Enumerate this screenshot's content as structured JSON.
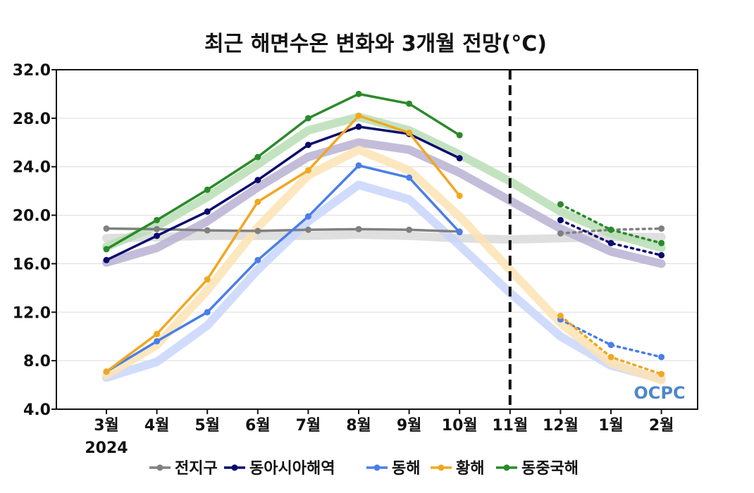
{
  "chart_data": {
    "type": "line",
    "title": "최근 해면수온 변화와 3개월 전망(°C)",
    "categories": [
      "3월",
      "4월",
      "5월",
      "6월",
      "7월",
      "8월",
      "9월",
      "10월",
      "11월",
      "12월",
      "1월",
      "2월"
    ],
    "year_label": "2024",
    "ylim": [
      4.0,
      32.0
    ],
    "yticks": [
      4.0,
      8.0,
      12.0,
      16.0,
      20.0,
      24.0,
      28.0,
      32.0
    ],
    "grid": true,
    "forecast_divider_between": [
      "10월",
      "12월"
    ],
    "legend_position": "bottom",
    "series": [
      {
        "name": "전지구",
        "color": "#808080",
        "observed": [
          18.9,
          18.85,
          18.75,
          18.7,
          18.8,
          18.85,
          18.8,
          18.65
        ],
        "forecast": [
          null,
          null,
          null,
          null,
          null,
          null,
          null,
          null,
          null,
          18.5,
          18.8,
          18.9
        ],
        "normal": [
          18.1,
          18.2,
          18.3,
          18.3,
          18.3,
          18.4,
          18.3,
          18.1,
          18.0,
          18.1,
          18.2,
          18.2
        ],
        "normal_color": "#d9d9d9"
      },
      {
        "name": "동아시아해역",
        "color": "#0a0a6e",
        "observed": [
          16.3,
          18.3,
          20.3,
          22.9,
          25.8,
          27.3,
          26.7,
          24.7
        ],
        "forecast": [
          null,
          null,
          null,
          null,
          null,
          null,
          null,
          null,
          null,
          19.6,
          17.7,
          16.7
        ],
        "normal": [
          16.1,
          17.3,
          19.5,
          22.3,
          24.8,
          26.0,
          25.4,
          23.5,
          21.2,
          18.9,
          17.0,
          16.0
        ],
        "normal_color": "#b8b2d4"
      },
      {
        "name": "동해",
        "color": "#4a7ee8",
        "observed": [
          7.1,
          9.6,
          12.0,
          16.3,
          19.9,
          24.1,
          23.1,
          18.6
        ],
        "forecast": [
          null,
          null,
          null,
          null,
          null,
          null,
          null,
          null,
          null,
          11.4,
          9.3,
          8.3
        ],
        "normal": [
          6.6,
          7.9,
          10.9,
          15.5,
          19.5,
          22.5,
          21.3,
          17.5,
          13.6,
          10.0,
          7.6,
          6.5
        ],
        "normal_color": "#c9d6fb"
      },
      {
        "name": "황해",
        "color": "#f0a820",
        "observed": [
          7.1,
          10.2,
          14.7,
          21.1,
          23.7,
          28.2,
          26.8,
          21.6
        ],
        "forecast": [
          null,
          null,
          null,
          null,
          null,
          null,
          null,
          null,
          null,
          11.7,
          8.3,
          6.9
        ],
        "normal": [
          6.8,
          9.3,
          13.8,
          19.0,
          23.3,
          25.4,
          23.7,
          19.9,
          15.5,
          11.1,
          7.8,
          6.4
        ],
        "normal_color": "#fde3b4"
      },
      {
        "name": "동중국해",
        "color": "#2a8a2a",
        "observed": [
          17.2,
          19.6,
          22.1,
          24.8,
          28.0,
          30.0,
          29.2,
          26.6
        ],
        "forecast": [
          null,
          null,
          null,
          null,
          null,
          null,
          null,
          null,
          null,
          20.9,
          18.8,
          17.7
        ],
        "normal": [
          17.4,
          19.1,
          21.5,
          24.2,
          27.0,
          28.1,
          27.0,
          25.0,
          22.8,
          20.3,
          18.5,
          17.3
        ],
        "normal_color": "#b9deb5"
      }
    ]
  },
  "logo": {
    "text": "OCPC",
    "color": "#4f87c9"
  }
}
